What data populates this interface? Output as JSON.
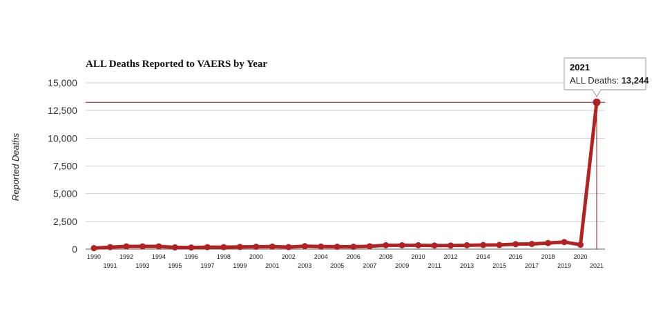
{
  "chart_data": {
    "type": "line",
    "title": "ALL Deaths Reported to VAERS by Year",
    "xlabel": "",
    "ylabel": "Reported Deaths",
    "ylim": [
      0,
      15000
    ],
    "y_ticks": [
      "0",
      "2,500",
      "5,000",
      "7,500",
      "10,000",
      "12,500",
      "15,000"
    ],
    "grid": true,
    "x": [
      "1990",
      "1991",
      "1992",
      "1993",
      "1994",
      "1995",
      "1996",
      "1997",
      "1998",
      "1999",
      "2000",
      "2001",
      "2002",
      "2003",
      "2004",
      "2005",
      "2006",
      "2007",
      "2008",
      "2009",
      "2010",
      "2011",
      "2012",
      "2013",
      "2014",
      "2015",
      "2016",
      "2017",
      "2018",
      "2019",
      "2020",
      "2021"
    ],
    "series": [
      {
        "name": "ALL Deaths",
        "color": "#b22222",
        "values": [
          90,
          180,
          250,
          250,
          250,
          160,
          150,
          180,
          180,
          200,
          220,
          230,
          190,
          270,
          230,
          220,
          220,
          260,
          350,
          350,
          350,
          330,
          330,
          350,
          370,
          380,
          450,
          470,
          550,
          640,
          400,
          13244
        ]
      }
    ],
    "tooltip": {
      "year": "2021",
      "label": "ALL Deaths:",
      "value": "13,244"
    },
    "highlight_color": "#8b1a1a"
  }
}
